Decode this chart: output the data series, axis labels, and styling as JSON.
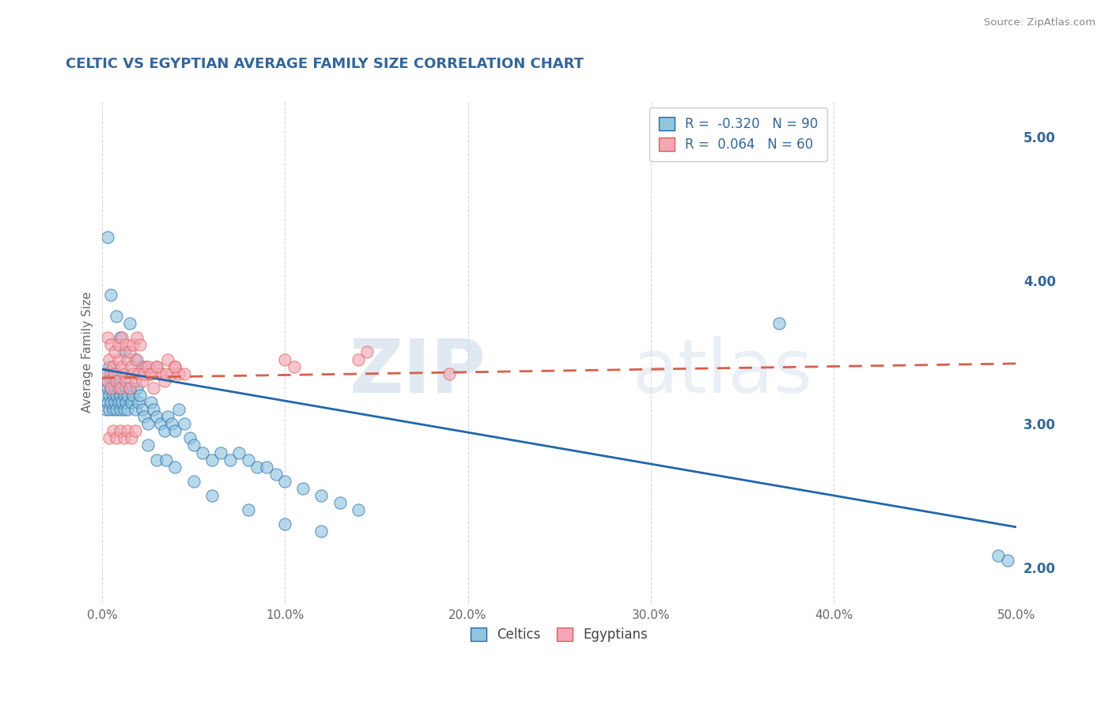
{
  "title": "CELTIC VS EGYPTIAN AVERAGE FAMILY SIZE CORRELATION CHART",
  "source": "Source: ZipAtlas.com",
  "ylabel": "Average Family Size",
  "xlim": [
    0.0,
    0.5
  ],
  "ylim": [
    1.75,
    5.25
  ],
  "yticks_right": [
    2.0,
    3.0,
    4.0,
    5.0
  ],
  "xticks": [
    0.0,
    0.1,
    0.2,
    0.3,
    0.4,
    0.5
  ],
  "xticklabels": [
    "0.0%",
    "10.0%",
    "20.0%",
    "30.0%",
    "40.0%",
    "50.0%"
  ],
  "yticklabels_right": [
    "2.00",
    "3.00",
    "4.00",
    "5.00"
  ],
  "celtics_color": "#92c5de",
  "egyptians_color": "#f4a6b8",
  "celtics_line_color": "#2166ac",
  "egyptians_line_color": "#d6604d",
  "R_celtics": -0.32,
  "N_celtics": 90,
  "R_egyptians": 0.064,
  "N_egyptians": 60,
  "legend_labels": [
    "Celtics",
    "Egyptians"
  ],
  "watermark_zip": "ZIP",
  "watermark_atlas": "atlas",
  "background_color": "#ffffff",
  "grid_color": "#cccccc",
  "title_color": "#336699",
  "celtic_line_x0": 0.0,
  "celtic_line_y0": 3.38,
  "celtic_line_x1": 0.5,
  "celtic_line_y1": 2.28,
  "egypt_line_x0": 0.0,
  "egypt_line_y0": 3.32,
  "egypt_line_x1": 0.5,
  "egypt_line_y1": 3.42,
  "celtics_x": [
    0.001,
    0.002,
    0.002,
    0.003,
    0.003,
    0.003,
    0.004,
    0.004,
    0.004,
    0.005,
    0.005,
    0.005,
    0.006,
    0.006,
    0.006,
    0.007,
    0.007,
    0.007,
    0.008,
    0.008,
    0.008,
    0.009,
    0.009,
    0.01,
    0.01,
    0.01,
    0.011,
    0.011,
    0.012,
    0.012,
    0.013,
    0.013,
    0.014,
    0.014,
    0.015,
    0.016,
    0.017,
    0.018,
    0.019,
    0.02,
    0.021,
    0.022,
    0.023,
    0.025,
    0.027,
    0.028,
    0.03,
    0.032,
    0.034,
    0.036,
    0.038,
    0.04,
    0.042,
    0.045,
    0.048,
    0.05,
    0.055,
    0.06,
    0.065,
    0.07,
    0.075,
    0.08,
    0.085,
    0.09,
    0.095,
    0.1,
    0.11,
    0.12,
    0.13,
    0.14,
    0.003,
    0.005,
    0.008,
    0.01,
    0.012,
    0.015,
    0.018,
    0.022,
    0.025,
    0.03,
    0.035,
    0.04,
    0.05,
    0.06,
    0.08,
    0.1,
    0.12,
    0.37,
    0.49,
    0.495
  ],
  "celtics_y": [
    3.2,
    3.1,
    3.35,
    3.25,
    3.15,
    3.3,
    3.2,
    3.1,
    3.4,
    3.25,
    3.15,
    3.35,
    3.2,
    3.1,
    3.3,
    3.25,
    3.15,
    3.35,
    3.2,
    3.1,
    3.3,
    3.25,
    3.15,
    3.2,
    3.1,
    3.3,
    3.25,
    3.15,
    3.2,
    3.1,
    3.25,
    3.15,
    3.2,
    3.1,
    3.25,
    3.15,
    3.2,
    3.1,
    3.25,
    3.15,
    3.2,
    3.1,
    3.05,
    3.0,
    3.15,
    3.1,
    3.05,
    3.0,
    2.95,
    3.05,
    3.0,
    2.95,
    3.1,
    3.0,
    2.9,
    2.85,
    2.8,
    2.75,
    2.8,
    2.75,
    2.8,
    2.75,
    2.7,
    2.7,
    2.65,
    2.6,
    2.55,
    2.5,
    2.45,
    2.4,
    4.3,
    3.9,
    3.75,
    3.6,
    3.5,
    3.7,
    3.45,
    3.4,
    2.85,
    2.75,
    2.75,
    2.7,
    2.6,
    2.5,
    2.4,
    2.3,
    2.25,
    3.7,
    2.08,
    2.05
  ],
  "egyptians_x": [
    0.002,
    0.003,
    0.004,
    0.005,
    0.006,
    0.007,
    0.008,
    0.009,
    0.01,
    0.011,
    0.012,
    0.013,
    0.014,
    0.015,
    0.016,
    0.017,
    0.018,
    0.019,
    0.02,
    0.022,
    0.024,
    0.026,
    0.028,
    0.03,
    0.032,
    0.034,
    0.036,
    0.038,
    0.04,
    0.042,
    0.003,
    0.005,
    0.007,
    0.009,
    0.011,
    0.013,
    0.015,
    0.017,
    0.019,
    0.021,
    0.004,
    0.006,
    0.008,
    0.01,
    0.012,
    0.014,
    0.016,
    0.018,
    0.023,
    0.025,
    0.027,
    0.03,
    0.035,
    0.04,
    0.045,
    0.1,
    0.105,
    0.14,
    0.145,
    0.19
  ],
  "egyptians_y": [
    3.35,
    3.3,
    3.45,
    3.25,
    3.4,
    3.35,
    3.3,
    3.45,
    3.25,
    3.4,
    3.35,
    3.3,
    3.45,
    3.25,
    3.4,
    3.35,
    3.3,
    3.45,
    3.35,
    3.3,
    3.4,
    3.35,
    3.25,
    3.4,
    3.35,
    3.3,
    3.45,
    3.35,
    3.4,
    3.35,
    3.6,
    3.55,
    3.5,
    3.55,
    3.6,
    3.55,
    3.5,
    3.55,
    3.6,
    3.55,
    2.9,
    2.95,
    2.9,
    2.95,
    2.9,
    2.95,
    2.9,
    2.95,
    3.35,
    3.4,
    3.35,
    3.4,
    3.35,
    3.4,
    3.35,
    3.45,
    3.4,
    3.45,
    3.5,
    3.35
  ]
}
